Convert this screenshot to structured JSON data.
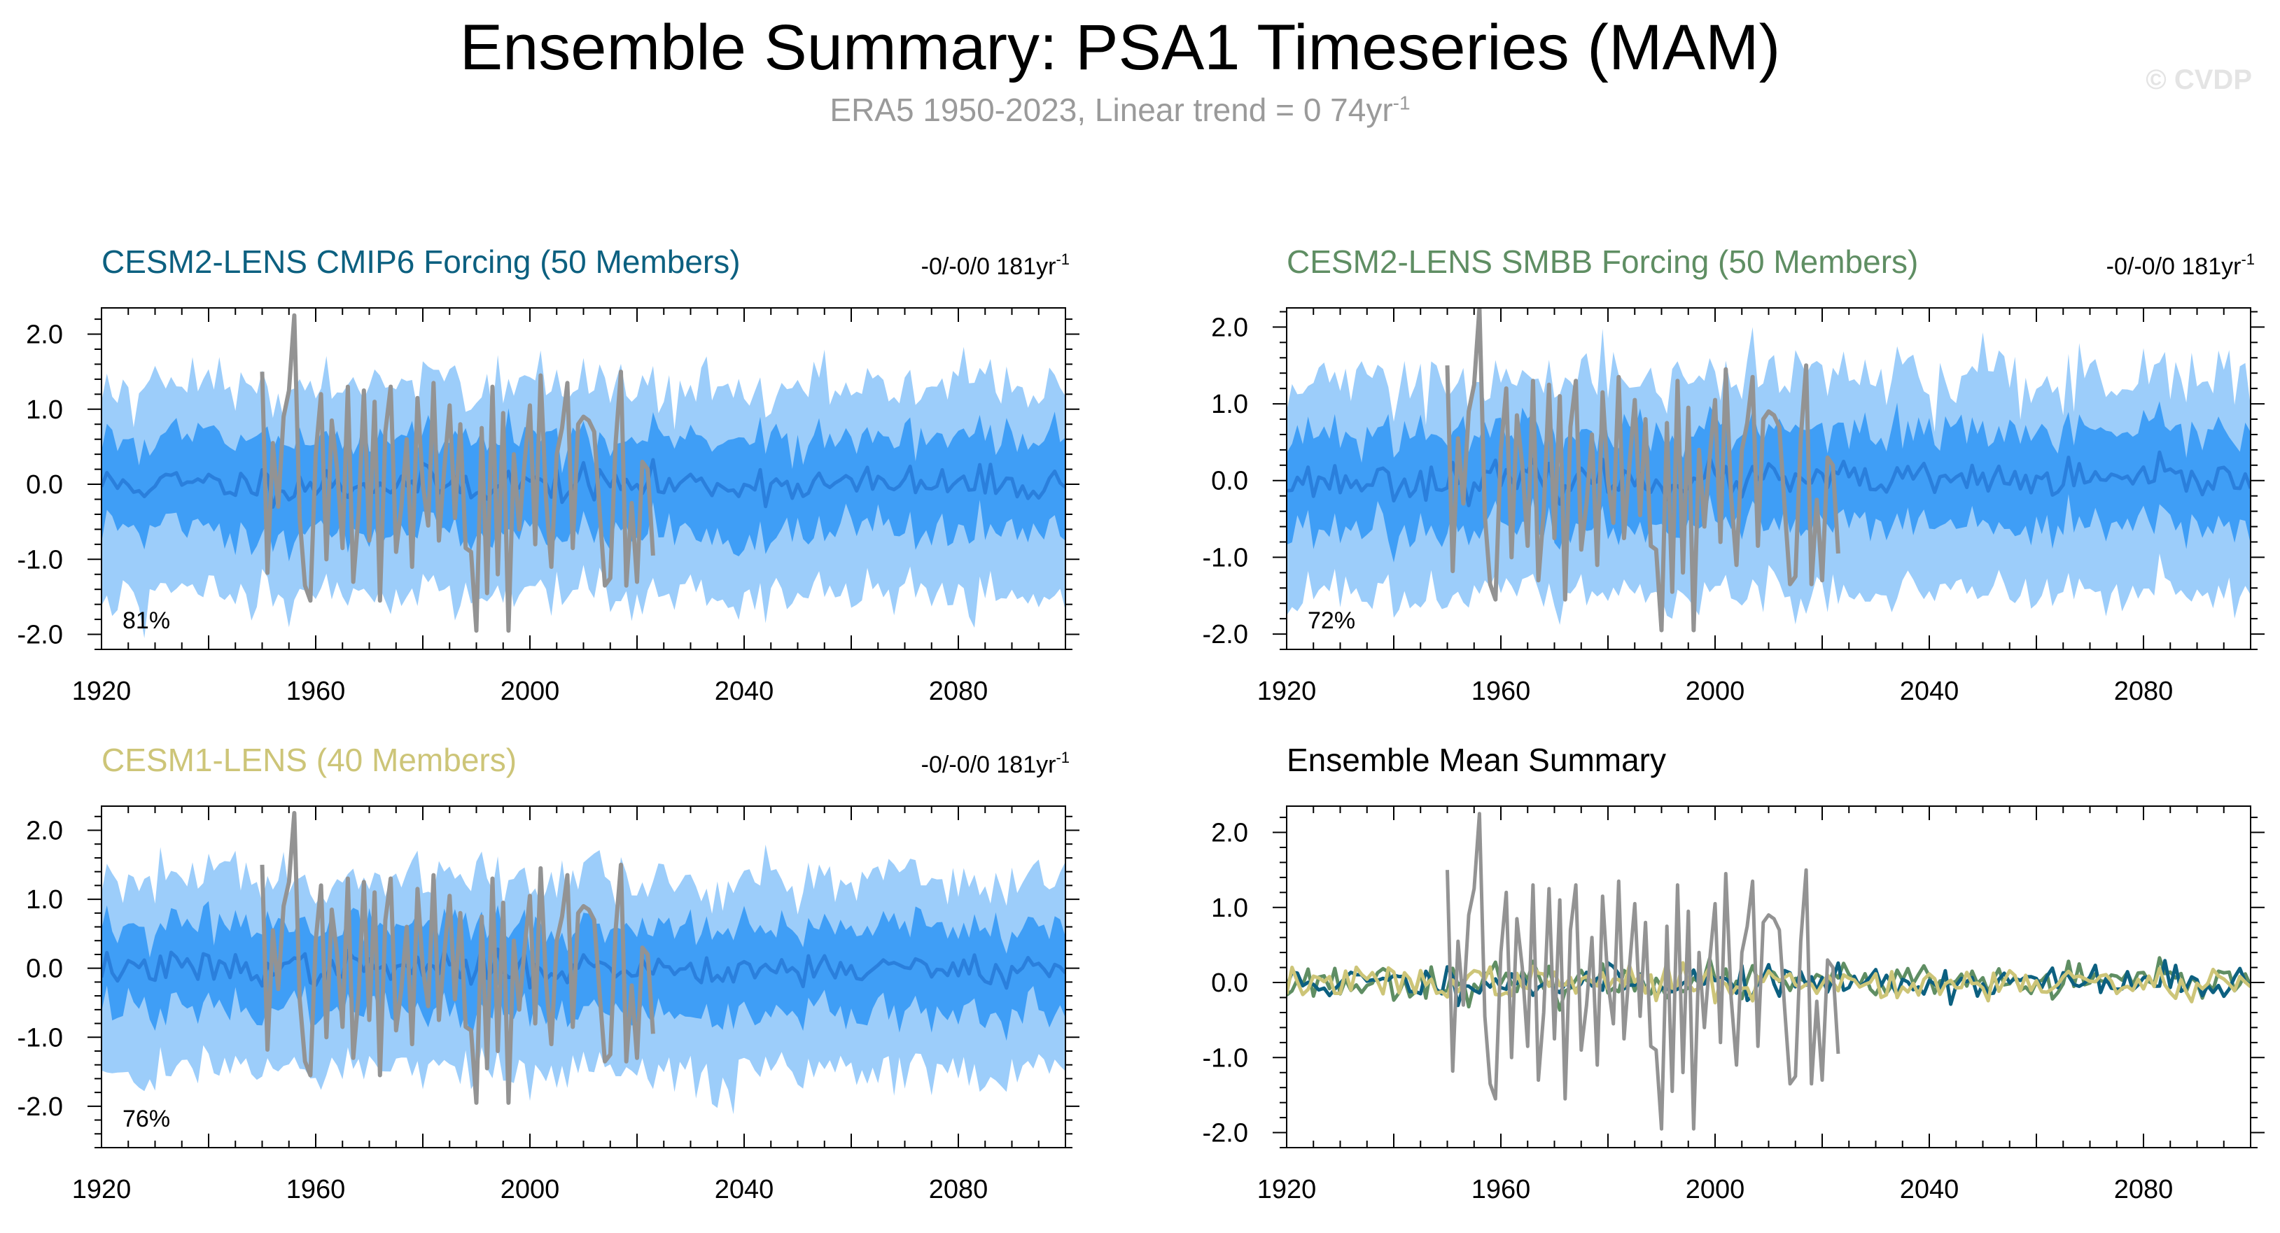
{
  "header": {
    "title": "Ensemble Summary: PSA1 Timeseries (MAM)",
    "subtitle_main": "ERA5 1950-2023, Linear trend = 0 74yr",
    "subtitle_sup": "-1",
    "watermark": "© CVDP"
  },
  "colors": {
    "band_outer": "#9ccdfa",
    "band_inner": "#3f9ef6",
    "ens_mean": "#2a7fdc",
    "obs": "#939393",
    "cmip6": "#0c6080",
    "smbb": "#5f8e63",
    "cesm1": "#cdc578"
  },
  "chart_data": [
    {
      "id": "cmip6",
      "type": "area",
      "title": "CESM2-LENS CMIP6 Forcing (50 Members)",
      "title_color": "#0c6080",
      "trend_label": "-0/-0/0 181yr",
      "trend_sup": "-1",
      "percent_label": "81%",
      "xlim": [
        1920,
        2100
      ],
      "ylim": [
        -2.2,
        2.35
      ],
      "xticks": [
        1920,
        1960,
        2000,
        2040,
        2080
      ],
      "yticks": [
        -2.0,
        -1.0,
        0.0,
        1.0,
        2.0
      ],
      "ytick_labels": [
        "-2.0",
        "-1.0",
        "0.0",
        "1.0",
        "2.0"
      ],
      "seed": 11,
      "band_inner_halfwidth": 0.62,
      "band_outer_halfwidth": 1.3,
      "obs_range": [
        1950,
        2023
      ]
    },
    {
      "id": "smbb",
      "type": "area",
      "title": "CESM2-LENS SMBB Forcing (50 Members)",
      "title_color": "#5f8e63",
      "trend_label": "-0/-0/0 181yr",
      "trend_sup": "-1",
      "percent_label": "72%",
      "xlim": [
        1920,
        2100
      ],
      "ylim": [
        -2.2,
        2.25
      ],
      "xticks": [
        1920,
        1960,
        2000,
        2040,
        2080
      ],
      "yticks": [
        -2.0,
        -1.0,
        0.0,
        1.0,
        2.0
      ],
      "ytick_labels": [
        "-2.0",
        "-1.0",
        "0.0",
        "1.0",
        "2.0"
      ],
      "seed": 23,
      "band_inner_halfwidth": 0.62,
      "band_outer_halfwidth": 1.3,
      "obs_range": [
        1950,
        2023
      ]
    },
    {
      "id": "cesm1",
      "type": "area",
      "title": "CESM1-LENS (40 Members)",
      "title_color": "#cdc578",
      "trend_label": "-0/-0/0 181yr",
      "trend_sup": "-1",
      "percent_label": "76%",
      "xlim": [
        1920,
        2100
      ],
      "ylim": [
        -2.6,
        2.35
      ],
      "xticks": [
        1920,
        1960,
        2000,
        2040,
        2080
      ],
      "yticks": [
        -2.0,
        -1.0,
        0.0,
        1.0,
        2.0
      ],
      "ytick_labels": [
        "-2.0",
        "-1.0",
        "0.0",
        "1.0",
        "2.0"
      ],
      "seed": 37,
      "band_inner_halfwidth": 0.62,
      "band_outer_halfwidth": 1.3,
      "obs_range": [
        1950,
        2023
      ]
    },
    {
      "id": "summary",
      "type": "line",
      "title": "Ensemble Mean Summary",
      "title_color": "#000000",
      "xlim": [
        1920,
        2100
      ],
      "ylim": [
        -2.2,
        2.35
      ],
      "xticks": [
        1920,
        1960,
        2000,
        2040,
        2080
      ],
      "yticks": [
        -2.0,
        -1.0,
        0.0,
        1.0,
        2.0
      ],
      "ytick_labels": [
        "-2.0",
        "-1.0",
        "0.0",
        "1.0",
        "2.0"
      ],
      "series": [
        {
          "name": "ERA5",
          "color": "#939393",
          "range": [
            1950,
            2023
          ]
        },
        {
          "name": "CESM2-LENS CMIP6 Forcing",
          "color": "#0c6080",
          "range": [
            1920,
            2100
          ]
        },
        {
          "name": "CESM2-LENS SMBB Forcing",
          "color": "#5f8e63",
          "range": [
            1920,
            2100
          ]
        },
        {
          "name": "CESM1-LENS",
          "color": "#cdc578",
          "range": [
            1920,
            2100
          ]
        }
      ]
    }
  ],
  "obs_series": {
    "name": "ERA5",
    "years": [
      1950,
      2023
    ],
    "values": [
      1.5,
      -1.18,
      0.55,
      -0.3,
      0.9,
      1.25,
      2.25,
      -0.45,
      -1.35,
      -1.55,
      0.4,
      1.2,
      -1.0,
      0.85,
      0.2,
      -0.85,
      1.3,
      -1.3,
      -0.4,
      1.25,
      -0.75,
      1.1,
      -1.55,
      0.7,
      1.3,
      -0.9,
      -0.3,
      0.6,
      -1.1,
      1.15,
      0.0,
      -0.55,
      1.35,
      -0.75,
      0.2,
      1.05,
      -0.45,
      0.8,
      -0.85,
      -0.9,
      -1.95,
      0.75,
      -1.45,
      1.3,
      -1.2,
      0.95,
      -1.95,
      0.4,
      -0.6,
      0.3,
      1.05,
      -0.8,
      1.45,
      -0.2,
      -1.1,
      0.4,
      0.75,
      1.35,
      -0.85,
      0.8,
      0.9,
      0.85,
      0.7,
      -0.35,
      -1.35,
      -1.25,
      0.55,
      1.5,
      -1.35,
      -0.25,
      -1.3,
      0.3,
      0.2,
      -0.95
    ]
  }
}
